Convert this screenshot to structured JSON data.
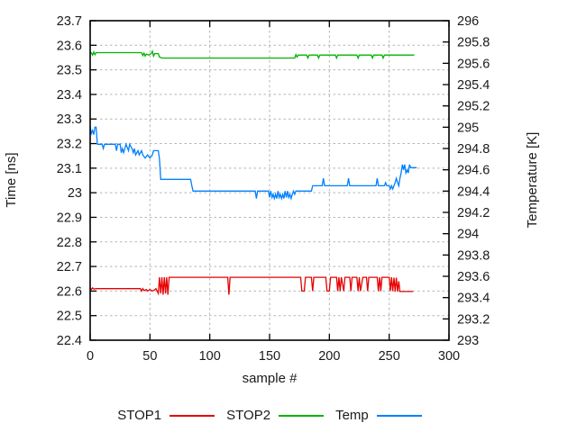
{
  "chart_data": {
    "type": "line",
    "title": "",
    "xlabel": "sample #",
    "ylabel": "Time [ns]",
    "y2label": "Temperature [K]",
    "xlim": [
      0,
      300
    ],
    "ylim": [
      22.4,
      23.7
    ],
    "y2lim": [
      293,
      296
    ],
    "grid": true,
    "legend_position": "bottom",
    "border_color": "#000000",
    "grid_color": "#b4b4b4",
    "text_color": "#1a1a1a",
    "xticks": {
      "values": [
        0,
        50,
        100,
        150,
        200,
        250,
        300
      ],
      "labels": [
        "0",
        "50",
        "100",
        "150",
        "200",
        "250",
        "300"
      ]
    },
    "yticks": {
      "values": [
        22.4,
        22.5,
        22.6,
        22.7,
        22.8,
        22.9,
        23.0,
        23.1,
        23.2,
        23.3,
        23.4,
        23.5,
        23.6,
        23.7
      ],
      "labels": [
        "22.4",
        "22.5",
        "22.6",
        "22.7",
        "22.8",
        "22.9",
        "23",
        "23.1",
        "23.2",
        "23.3",
        "23.4",
        "23.5",
        "23.6",
        "23.7"
      ]
    },
    "y2ticks": {
      "values": [
        293,
        293.2,
        293.4,
        293.6,
        293.8,
        294,
        294.2,
        294.4,
        294.6,
        294.8,
        295,
        295.2,
        295.4,
        295.6,
        295.8,
        296
      ],
      "labels": [
        "293",
        "293.2",
        "293.4",
        "293.6",
        "293.8",
        "294",
        "294.2",
        "294.4",
        "294.6",
        "294.8",
        "295",
        "295.2",
        "295.4",
        "295.6",
        "295.8",
        "296"
      ]
    },
    "series": [
      {
        "name": "STOP1",
        "axis": "y1",
        "color": "#e60000",
        "points": [
          [
            0,
            22.612
          ],
          [
            1,
            22.607
          ],
          [
            2,
            22.613
          ],
          [
            3,
            22.608
          ],
          [
            5,
            22.61
          ],
          [
            42,
            22.61
          ],
          [
            43,
            22.6
          ],
          [
            44,
            22.61
          ],
          [
            45,
            22.602
          ],
          [
            47,
            22.606
          ],
          [
            48,
            22.6
          ],
          [
            50,
            22.606
          ],
          [
            52,
            22.6
          ],
          [
            54,
            22.605
          ],
          [
            55,
            22.61
          ],
          [
            56,
            22.6
          ],
          [
            57,
            22.59
          ],
          [
            58,
            22.656
          ],
          [
            59,
            22.59
          ],
          [
            60,
            22.656
          ],
          [
            61,
            22.585
          ],
          [
            62,
            22.656
          ],
          [
            63,
            22.59
          ],
          [
            64,
            22.656
          ],
          [
            65,
            22.585
          ],
          [
            66,
            22.656
          ],
          [
            115,
            22.656
          ],
          [
            116,
            22.585
          ],
          [
            117,
            22.656
          ],
          [
            176,
            22.656
          ],
          [
            177,
            22.6
          ],
          [
            179,
            22.6
          ],
          [
            180,
            22.656
          ],
          [
            185,
            22.656
          ],
          [
            186,
            22.6
          ],
          [
            187,
            22.656
          ],
          [
            197,
            22.656
          ],
          [
            198,
            22.6
          ],
          [
            200,
            22.6
          ],
          [
            201,
            22.656
          ],
          [
            206,
            22.656
          ],
          [
            207,
            22.6
          ],
          [
            208,
            22.656
          ],
          [
            209,
            22.6
          ],
          [
            210,
            22.656
          ],
          [
            212,
            22.6
          ],
          [
            213,
            22.656
          ],
          [
            217,
            22.656
          ],
          [
            218,
            22.6
          ],
          [
            219,
            22.656
          ],
          [
            223,
            22.656
          ],
          [
            224,
            22.6
          ],
          [
            225,
            22.656
          ],
          [
            226,
            22.6
          ],
          [
            228,
            22.656
          ],
          [
            231,
            22.656
          ],
          [
            232,
            22.6
          ],
          [
            233,
            22.656
          ],
          [
            240,
            22.656
          ],
          [
            241,
            22.6
          ],
          [
            242,
            22.656
          ],
          [
            243,
            22.6
          ],
          [
            244,
            22.656
          ],
          [
            250,
            22.656
          ],
          [
            251,
            22.6
          ],
          [
            252,
            22.656
          ],
          [
            253,
            22.6
          ],
          [
            254,
            22.654
          ],
          [
            255,
            22.598
          ],
          [
            256,
            22.654
          ],
          [
            257,
            22.598
          ],
          [
            258,
            22.64
          ],
          [
            259,
            22.598
          ],
          [
            270,
            22.598
          ]
        ]
      },
      {
        "name": "STOP2",
        "axis": "y1",
        "color": "#00b400",
        "points": [
          [
            0,
            23.573
          ],
          [
            1,
            23.569
          ],
          [
            2,
            23.56
          ],
          [
            3,
            23.573
          ],
          [
            4,
            23.562
          ],
          [
            5,
            23.57
          ],
          [
            43,
            23.57
          ],
          [
            44,
            23.558
          ],
          [
            45,
            23.568
          ],
          [
            46,
            23.556
          ],
          [
            47,
            23.564
          ],
          [
            49,
            23.56
          ],
          [
            51,
            23.566
          ],
          [
            52,
            23.576
          ],
          [
            53,
            23.556
          ],
          [
            54,
            23.566
          ],
          [
            57,
            23.566
          ],
          [
            58,
            23.552
          ],
          [
            60,
            23.548
          ],
          [
            171,
            23.548
          ],
          [
            172,
            23.562
          ],
          [
            173,
            23.552
          ],
          [
            174,
            23.56
          ],
          [
            181,
            23.56
          ],
          [
            182,
            23.548
          ],
          [
            183,
            23.56
          ],
          [
            190,
            23.56
          ],
          [
            191,
            23.548
          ],
          [
            192,
            23.56
          ],
          [
            205,
            23.56
          ],
          [
            206,
            23.548
          ],
          [
            207,
            23.56
          ],
          [
            223,
            23.56
          ],
          [
            224,
            23.548
          ],
          [
            225,
            23.56
          ],
          [
            235,
            23.56
          ],
          [
            236,
            23.548
          ],
          [
            237,
            23.56
          ],
          [
            244,
            23.56
          ],
          [
            245,
            23.548
          ],
          [
            246,
            23.56
          ],
          [
            271,
            23.56
          ]
        ]
      },
      {
        "name": "Temp",
        "axis": "y2",
        "color": "#0080ff",
        "points": [
          [
            0,
            295.01
          ],
          [
            1,
            294.94
          ],
          [
            2,
            294.97
          ],
          [
            3,
            294.93
          ],
          [
            4,
            295.0
          ],
          [
            5,
            295.0
          ],
          [
            6,
            294.84
          ],
          [
            10,
            294.84
          ],
          [
            11,
            294.8
          ],
          [
            12,
            294.84
          ],
          [
            21,
            294.84
          ],
          [
            22,
            294.78
          ],
          [
            23,
            294.84
          ],
          [
            25,
            294.84
          ],
          [
            26,
            294.76
          ],
          [
            27,
            294.8
          ],
          [
            28,
            294.76
          ],
          [
            29,
            294.8
          ],
          [
            30,
            294.84
          ],
          [
            32,
            294.78
          ],
          [
            33,
            294.84
          ],
          [
            35,
            294.8
          ],
          [
            36,
            294.76
          ],
          [
            37,
            294.8
          ],
          [
            38,
            294.74
          ],
          [
            40,
            294.78
          ],
          [
            41,
            294.74
          ],
          [
            43,
            294.78
          ],
          [
            44,
            294.74
          ],
          [
            46,
            294.71
          ],
          [
            48,
            294.74
          ],
          [
            50,
            294.71
          ],
          [
            52,
            294.74
          ],
          [
            53,
            294.78
          ],
          [
            57,
            294.78
          ],
          [
            58,
            294.7
          ],
          [
            59,
            294.51
          ],
          [
            84,
            294.51
          ],
          [
            85,
            294.45
          ],
          [
            86,
            294.4
          ],
          [
            138,
            294.4
          ],
          [
            139,
            294.33
          ],
          [
            140,
            294.4
          ],
          [
            149,
            294.4
          ],
          [
            150,
            294.34
          ],
          [
            151,
            294.4
          ],
          [
            152,
            294.34
          ],
          [
            153,
            294.37
          ],
          [
            154,
            294.33
          ],
          [
            155,
            294.37
          ],
          [
            156,
            294.33
          ],
          [
            157,
            294.4
          ],
          [
            158,
            294.34
          ],
          [
            159,
            294.37
          ],
          [
            160,
            294.33
          ],
          [
            161,
            294.37
          ],
          [
            162,
            294.33
          ],
          [
            163,
            294.4
          ],
          [
            164,
            294.34
          ],
          [
            165,
            294.4
          ],
          [
            166,
            294.34
          ],
          [
            167,
            294.37
          ],
          [
            168,
            294.33
          ],
          [
            169,
            294.37
          ],
          [
            170,
            294.4
          ],
          [
            171,
            294.37
          ],
          [
            172,
            294.4
          ],
          [
            185,
            294.4
          ],
          [
            186,
            294.45
          ],
          [
            194,
            294.45
          ],
          [
            195,
            294.52
          ],
          [
            196,
            294.45
          ],
          [
            215,
            294.45
          ],
          [
            216,
            294.52
          ],
          [
            217,
            294.45
          ],
          [
            239,
            294.45
          ],
          [
            240,
            294.52
          ],
          [
            241,
            294.45
          ],
          [
            246,
            294.45
          ],
          [
            247,
            294.48
          ],
          [
            248,
            294.45
          ],
          [
            250,
            294.45
          ],
          [
            251,
            294.42
          ],
          [
            252,
            294.45
          ],
          [
            253,
            294.42
          ],
          [
            254,
            294.45
          ],
          [
            255,
            294.48
          ],
          [
            256,
            294.52
          ],
          [
            257,
            294.48
          ],
          [
            258,
            294.45
          ],
          [
            259,
            294.52
          ],
          [
            260,
            294.57
          ],
          [
            261,
            294.65
          ],
          [
            262,
            294.6
          ],
          [
            263,
            294.65
          ],
          [
            264,
            294.57
          ],
          [
            265,
            294.6
          ],
          [
            266,
            294.57
          ],
          [
            267,
            294.65
          ],
          [
            268,
            294.62
          ],
          [
            273,
            294.62
          ]
        ]
      }
    ]
  }
}
